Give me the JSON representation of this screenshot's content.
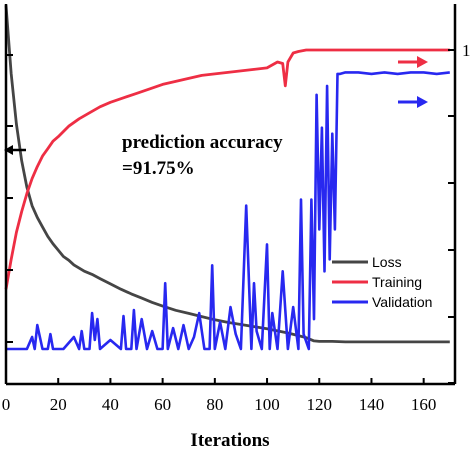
{
  "chart_data": {
    "type": "line",
    "xlabel": "Iterations",
    "x_ticks": [
      "0",
      "20",
      "40",
      "60",
      "80",
      "100",
      "120",
      "140",
      "160"
    ],
    "xlim": [
      0,
      172
    ],
    "right_tick_visible": "1",
    "annotation": {
      "line1": "prediction accuracy",
      "line2": "=91.75%"
    },
    "series": [
      {
        "name": "Loss",
        "color": "#454545",
        "axis": "left",
        "x": [
          0,
          2,
          4,
          6,
          8,
          10,
          12,
          14,
          16,
          18,
          20,
          22,
          24,
          26,
          28,
          30,
          33,
          36,
          40,
          44,
          48,
          52,
          56,
          60,
          65,
          70,
          75,
          80,
          85,
          90,
          95,
          100,
          104,
          108,
          112,
          115,
          118,
          120,
          125,
          130,
          140,
          150,
          160,
          170
        ],
        "values": [
          6.4,
          5.1,
          4.15,
          3.45,
          2.95,
          2.6,
          2.38,
          2.2,
          2.02,
          1.88,
          1.76,
          1.64,
          1.57,
          1.48,
          1.42,
          1.36,
          1.3,
          1.22,
          1.12,
          1.02,
          0.93,
          0.85,
          0.77,
          0.7,
          0.62,
          0.56,
          0.5,
          0.44,
          0.39,
          0.35,
          0.31,
          0.27,
          0.23,
          0.19,
          0.14,
          0.1,
          0.04,
          0.03,
          0.03,
          0.02,
          0.02,
          0.02,
          0.02,
          0.02
        ]
      },
      {
        "name": "Training",
        "color": "#ee2e44",
        "axis": "right",
        "x": [
          0,
          2,
          4,
          6,
          8,
          10,
          12,
          14,
          16,
          18,
          20,
          24,
          28,
          32,
          36,
          40,
          45,
          50,
          55,
          60,
          65,
          70,
          75,
          80,
          85,
          90,
          95,
          100,
          104,
          106,
          107,
          108,
          110,
          112,
          115,
          120,
          130,
          140,
          150,
          160,
          170
        ],
        "values": [
          0.2,
          0.3,
          0.39,
          0.46,
          0.52,
          0.57,
          0.61,
          0.645,
          0.67,
          0.695,
          0.71,
          0.745,
          0.77,
          0.79,
          0.81,
          0.825,
          0.84,
          0.855,
          0.87,
          0.885,
          0.895,
          0.905,
          0.915,
          0.92,
          0.925,
          0.93,
          0.935,
          0.94,
          0.96,
          0.955,
          0.88,
          0.96,
          0.99,
          0.995,
          1.0,
          1.0,
          1.0,
          1.0,
          1.0,
          1.0,
          1.0
        ]
      },
      {
        "name": "Validation",
        "color": "#2828f0",
        "axis": "right",
        "x": [
          0,
          8,
          10,
          11,
          12,
          14,
          16,
          17,
          18,
          22,
          26,
          28,
          29,
          30,
          32,
          33,
          34,
          35,
          36,
          40,
          44,
          45,
          46,
          48,
          49,
          50,
          52,
          54,
          56,
          58,
          60,
          61,
          62,
          64,
          66,
          68,
          70,
          72,
          74,
          76,
          78,
          79,
          80,
          82,
          84,
          86,
          88,
          90,
          92,
          94,
          95,
          96,
          98,
          100,
          101,
          102,
          104,
          106,
          108,
          110,
          112,
          113,
          114,
          116,
          117,
          118,
          119,
          120,
          121,
          122,
          123,
          124,
          125,
          126,
          127,
          128,
          130,
          135,
          140,
          145,
          150,
          155,
          160,
          165,
          170
        ],
        "values": [
          0.0,
          0.0,
          0.04,
          0.0,
          0.08,
          0.0,
          0.0,
          0.05,
          0.0,
          0.0,
          0.04,
          0.0,
          0.06,
          0.0,
          0.0,
          0.12,
          0.03,
          0.1,
          0.0,
          0.03,
          0.0,
          0.11,
          0.0,
          0.0,
          0.13,
          0.0,
          0.1,
          0.0,
          0.06,
          0.0,
          0.0,
          0.22,
          0.0,
          0.07,
          0.0,
          0.08,
          0.0,
          0.04,
          0.12,
          0.0,
          0.0,
          0.28,
          0.0,
          0.09,
          0.0,
          0.14,
          0.05,
          0.0,
          0.48,
          0.0,
          0.22,
          0.06,
          0.0,
          0.35,
          0.0,
          0.12,
          0.0,
          0.26,
          0.0,
          0.14,
          0.0,
          0.5,
          0.05,
          0.0,
          0.5,
          0.1,
          0.85,
          0.4,
          0.74,
          0.26,
          0.88,
          0.3,
          0.72,
          0.4,
          0.92,
          0.92,
          0.925,
          0.925,
          0.92,
          0.925,
          0.92,
          0.925,
          0.925,
          0.92,
          0.925
        ]
      }
    ],
    "left_arrow_color": "#000000",
    "right_arrow_colors": [
      "#ee2e44",
      "#2828f0"
    ]
  }
}
